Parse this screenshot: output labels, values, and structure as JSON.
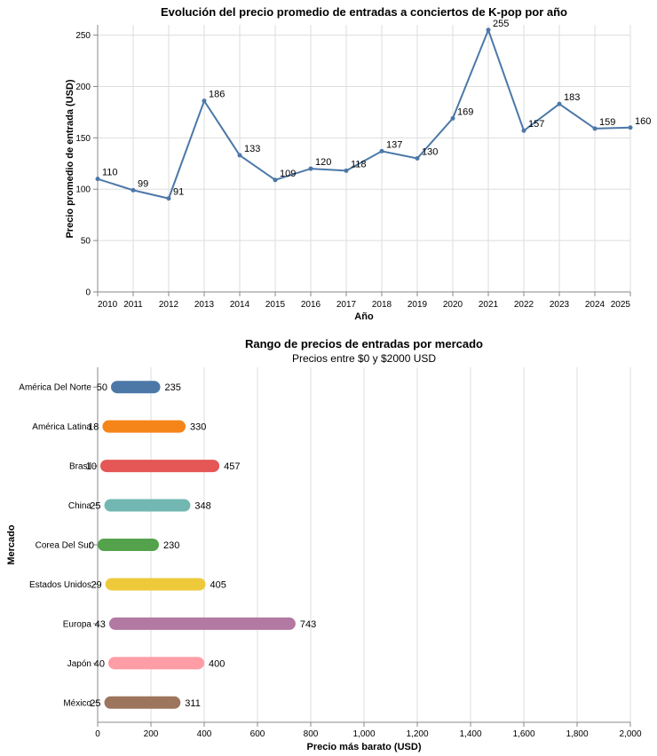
{
  "chart_data": [
    {
      "type": "line",
      "title": "Evolución del precio promedio de entradas a conciertos de K-pop por año",
      "xlabel": "Año",
      "ylabel": "Precio promedio de entrada (USD)",
      "x": [
        2010,
        2011,
        2012,
        2013,
        2014,
        2015,
        2016,
        2017,
        2018,
        2019,
        2020,
        2021,
        2022,
        2023,
        2024,
        2025
      ],
      "y": [
        110,
        99,
        91,
        186,
        133,
        109,
        120,
        118,
        137,
        130,
        169,
        255,
        157,
        183,
        159,
        160
      ],
      "labels": [
        "110",
        "99",
        "91",
        "186",
        "133",
        "109",
        "120",
        "118",
        "137",
        "130",
        "169",
        "255",
        "157",
        "183",
        "159",
        "160"
      ],
      "yticks": [
        "0",
        "50",
        "100",
        "150",
        "200",
        "250"
      ],
      "ylim": [
        0,
        260
      ],
      "grid": true,
      "color": "#4c78a8"
    },
    {
      "type": "bar",
      "subtype": "range",
      "title": "Rango de precios de entradas por mercado",
      "subtitle": "Precios entre $0 y $2000 USD",
      "xlabel": "Precio más barato (USD)",
      "ylabel": "Mercado",
      "categories": [
        "América Del Norte",
        "América Latina",
        "Brasil",
        "China",
        "Corea Del Sur",
        "Estados Unidos",
        "Europa",
        "Japón",
        "México"
      ],
      "min_values": [
        50,
        18,
        10,
        25,
        0,
        29,
        43,
        40,
        25
      ],
      "max_values": [
        235,
        330,
        457,
        348,
        230,
        405,
        743,
        400,
        311
      ],
      "min_labels": [
        "50",
        "18",
        "10",
        "25",
        "0",
        "29",
        "43",
        "40",
        "25"
      ],
      "max_labels": [
        "235",
        "330",
        "457",
        "348",
        "230",
        "405",
        "743",
        "400",
        "311"
      ],
      "colors": [
        "#4c78a8",
        "#f58518",
        "#e45756",
        "#72b7b2",
        "#54a24b",
        "#eeca3b",
        "#b279a2",
        "#ff9da6",
        "#9d755d"
      ],
      "xticks": [
        "0",
        "200",
        "400",
        "600",
        "800",
        "1,000",
        "1,200",
        "1,400",
        "1,600",
        "1,800",
        "2,000"
      ],
      "xlim": [
        0,
        2000
      ],
      "grid": true
    }
  ]
}
